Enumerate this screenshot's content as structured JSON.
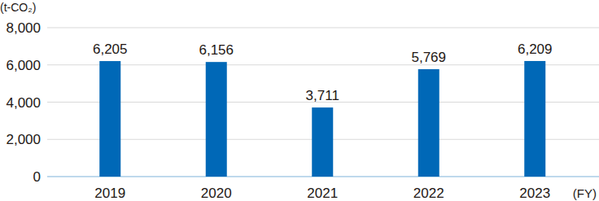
{
  "chart_data": {
    "type": "bar",
    "y_label": "(t-CO₂)",
    "x_label": "(FY)",
    "categories": [
      "2019",
      "2020",
      "2021",
      "2022",
      "2023"
    ],
    "values": [
      6205,
      6156,
      3711,
      5769,
      6209
    ],
    "value_labels": [
      "6,205",
      "6,156",
      "3,711",
      "5,769",
      "6,209"
    ],
    "color": "#0068b7",
    "ylim": [
      0,
      8000
    ],
    "yticks": [
      0,
      {
        "value": 2000,
        "label": "2,000"
      },
      {
        "value": 4000,
        "label": "4,000"
      },
      {
        "value": 6000,
        "label": "6,000"
      },
      {
        "value": 8000,
        "label": "8,000"
      }
    ],
    "grid": true,
    "data_labels": true
  }
}
